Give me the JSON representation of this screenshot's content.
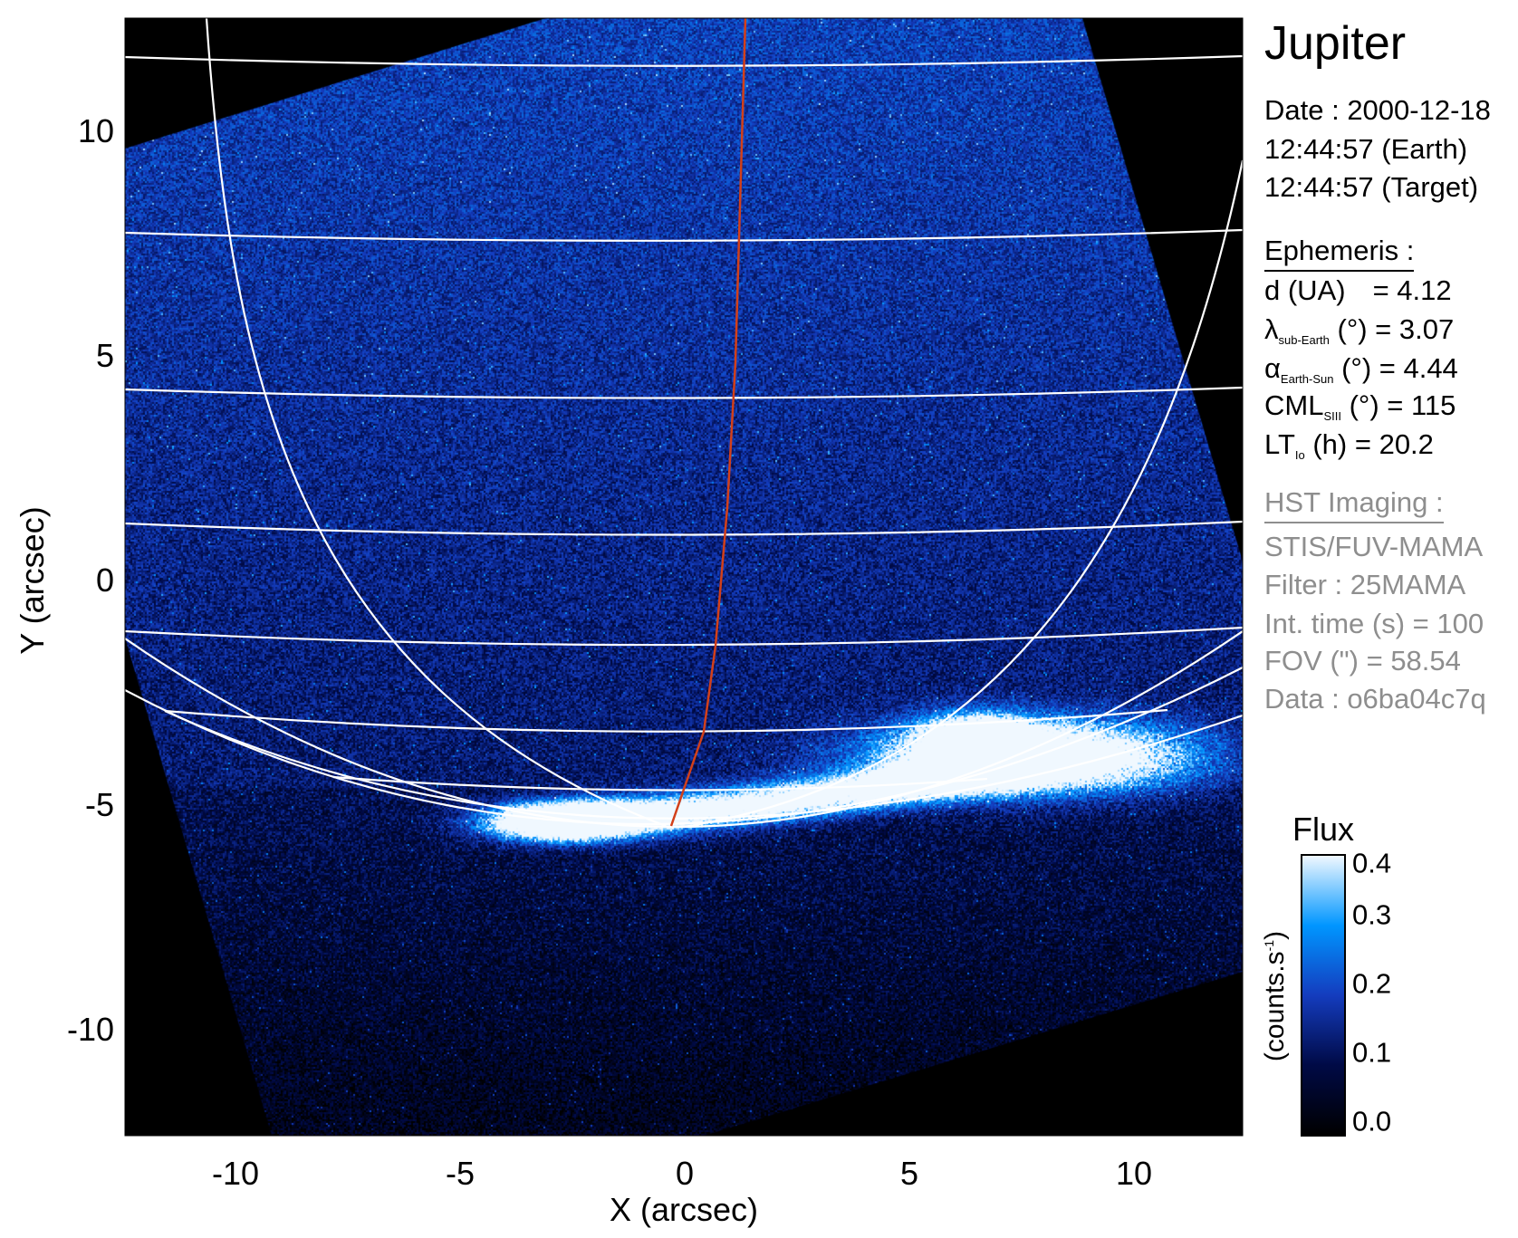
{
  "panel": {
    "title": "Jupiter",
    "date_line": "Date : 2000-12-18",
    "time_earth": "12:44:57 (Earth)",
    "time_target": "12:44:57 (Target)",
    "ephemeris_header": "Ephemeris :",
    "ephemeris": {
      "d": {
        "label": "d (UA)",
        "value": "= 4.12"
      },
      "lambda": {
        "symbol": "λ",
        "sub": "sub-Earth",
        "unit": "(°) = 3.07"
      },
      "alpha": {
        "symbol": "α",
        "sub": "Earth-Sun",
        "unit": "(°) = 4.44"
      },
      "cml": {
        "symbol": "CML",
        "sub": "SIII",
        "unit": "(°) = 115"
      },
      "lt": {
        "symbol": "LT",
        "sub": "Io",
        "unit": "(h) = 20.2"
      }
    },
    "hst_header": "HST Imaging :",
    "instrument": "STIS/FUV-MAMA",
    "filter": "Filter : 25MAMA",
    "int_time": "Int. time (s) = 100",
    "fov": "FOV (\") = 58.54",
    "dataset": "Data : o6ba04c7q"
  },
  "chart_data": {
    "type": "heatmap",
    "description_kind": "image",
    "xlabel": "X (arcsec)",
    "ylabel": "Y (arcsec)",
    "xlim": [
      -12.5,
      12.5
    ],
    "ylim": [
      -12.5,
      12.5
    ],
    "xticks": [
      "-10",
      "-5",
      "0",
      "5",
      "10"
    ],
    "yticks": [
      "-10",
      "-5",
      "0",
      "5",
      "10"
    ],
    "xtick_values": [
      -10,
      -5,
      0,
      5,
      10
    ],
    "ytick_values": [
      -10,
      -5,
      0,
      5,
      10
    ],
    "overlay": {
      "grid_color": "#ffffff",
      "meridian_color": "#d2401a"
    },
    "colorbar": {
      "title": "Flux",
      "label": "(counts.s",
      "label_sup": "-1",
      "label_close": ")",
      "range": [
        0.0,
        0.4
      ],
      "ticks": [
        "0.0",
        "0.1",
        "0.2",
        "0.3",
        "0.4"
      ],
      "colors": [
        "#000000",
        "#000a46",
        "#143cbe",
        "#0096ff",
        "#f0f8ff"
      ]
    }
  }
}
